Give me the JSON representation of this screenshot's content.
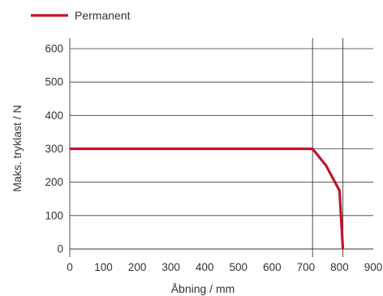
{
  "chart_data": {
    "type": "line",
    "xlabel": "Åbning / mm",
    "ylabel": "Maks. tryklast / N",
    "xlim": [
      0,
      900
    ],
    "ylim": [
      0,
      600
    ],
    "x_ticks": [
      "0",
      "100",
      "200",
      "300",
      "400",
      "500",
      "600",
      "700",
      "800",
      "900"
    ],
    "y_ticks": [
      "0",
      "100",
      "200",
      "300",
      "400",
      "500",
      "600"
    ],
    "grid": "horizontal",
    "vertical_reference_lines": [
      720,
      810
    ],
    "legend_position": "top-left",
    "series": [
      {
        "name": "Permanent",
        "color": "#c8102e",
        "x": [
          0,
          720,
          760,
          800,
          810
        ],
        "y": [
          300,
          300,
          250,
          175,
          0
        ]
      }
    ]
  }
}
